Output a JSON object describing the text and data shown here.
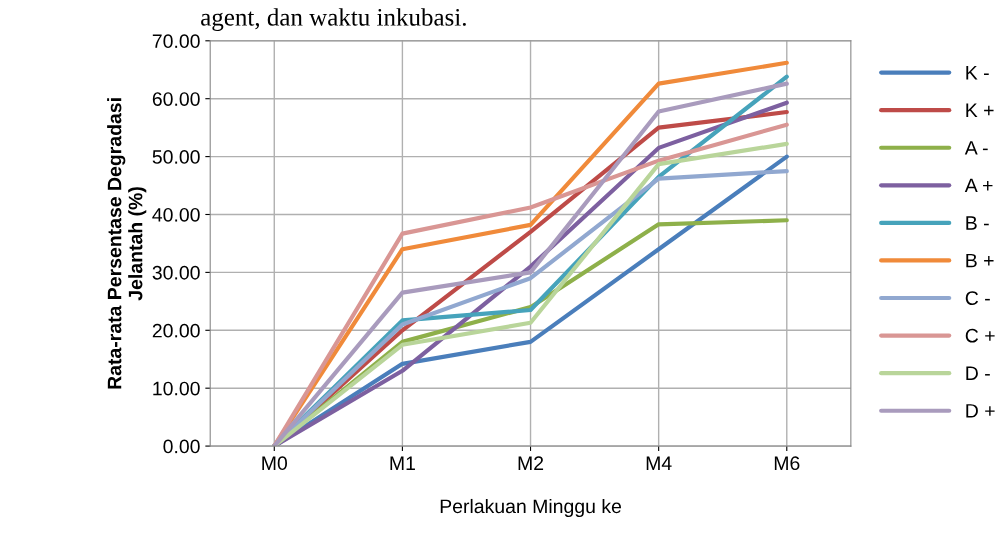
{
  "chart_data": {
    "type": "line",
    "ylabel": "Rata-rata Persentase Degradasi\nJelantah (%)",
    "xlabel": "Perlakuan Minggu ke",
    "annotations": [
      "agent, dan waktu inkubasi."
    ],
    "categories": [
      "M0",
      "M1",
      "M2",
      "M4",
      "M6"
    ],
    "ylim": [
      0,
      70
    ],
    "yticks": [
      {
        "value": 0,
        "label": "0.00"
      },
      {
        "value": 10,
        "label": "10.00"
      },
      {
        "value": 20,
        "label": "20.00"
      },
      {
        "value": 30,
        "label": "30.00"
      },
      {
        "value": 40,
        "label": "40.00"
      },
      {
        "value": 50,
        "label": "50.00"
      },
      {
        "value": 60,
        "label": "60.00"
      },
      {
        "value": 70,
        "label": "70.00"
      }
    ],
    "grid": true,
    "legend": "right",
    "line_style": "solid",
    "series": [
      {
        "name": "K -",
        "color": "#4a7ebb",
        "values": [
          0,
          14.2,
          18,
          34,
          50
        ]
      },
      {
        "name": "K +",
        "color": "#be4b48",
        "values": [
          0,
          20,
          37,
          55,
          57.7
        ]
      },
      {
        "name": "A -",
        "color": "#8eb04a",
        "values": [
          0,
          18,
          24,
          38.3,
          39
        ]
      },
      {
        "name": "A +",
        "color": "#7d60a0",
        "values": [
          0,
          13,
          31,
          51.5,
          59.3
        ]
      },
      {
        "name": "B -",
        "color": "#46a3bb",
        "values": [
          0,
          21.7,
          23.5,
          46.5,
          63.8
        ]
      },
      {
        "name": "B +",
        "color": "#f08a3a",
        "values": [
          0,
          34,
          38.2,
          62.6,
          66.2
        ]
      },
      {
        "name": "C -",
        "color": "#91a8d0",
        "values": [
          0,
          21,
          29,
          46.2,
          47.5
        ]
      },
      {
        "name": "C +",
        "color": "#d99694",
        "values": [
          0,
          36.7,
          41.2,
          49.3,
          55.5
        ]
      },
      {
        "name": "D -",
        "color": "#b9d59a",
        "values": [
          0,
          17.5,
          21.3,
          48.7,
          52.2
        ]
      },
      {
        "name": "D +",
        "color": "#a99bbd",
        "values": [
          0,
          26.5,
          30,
          57.8,
          62.6
        ]
      }
    ]
  }
}
